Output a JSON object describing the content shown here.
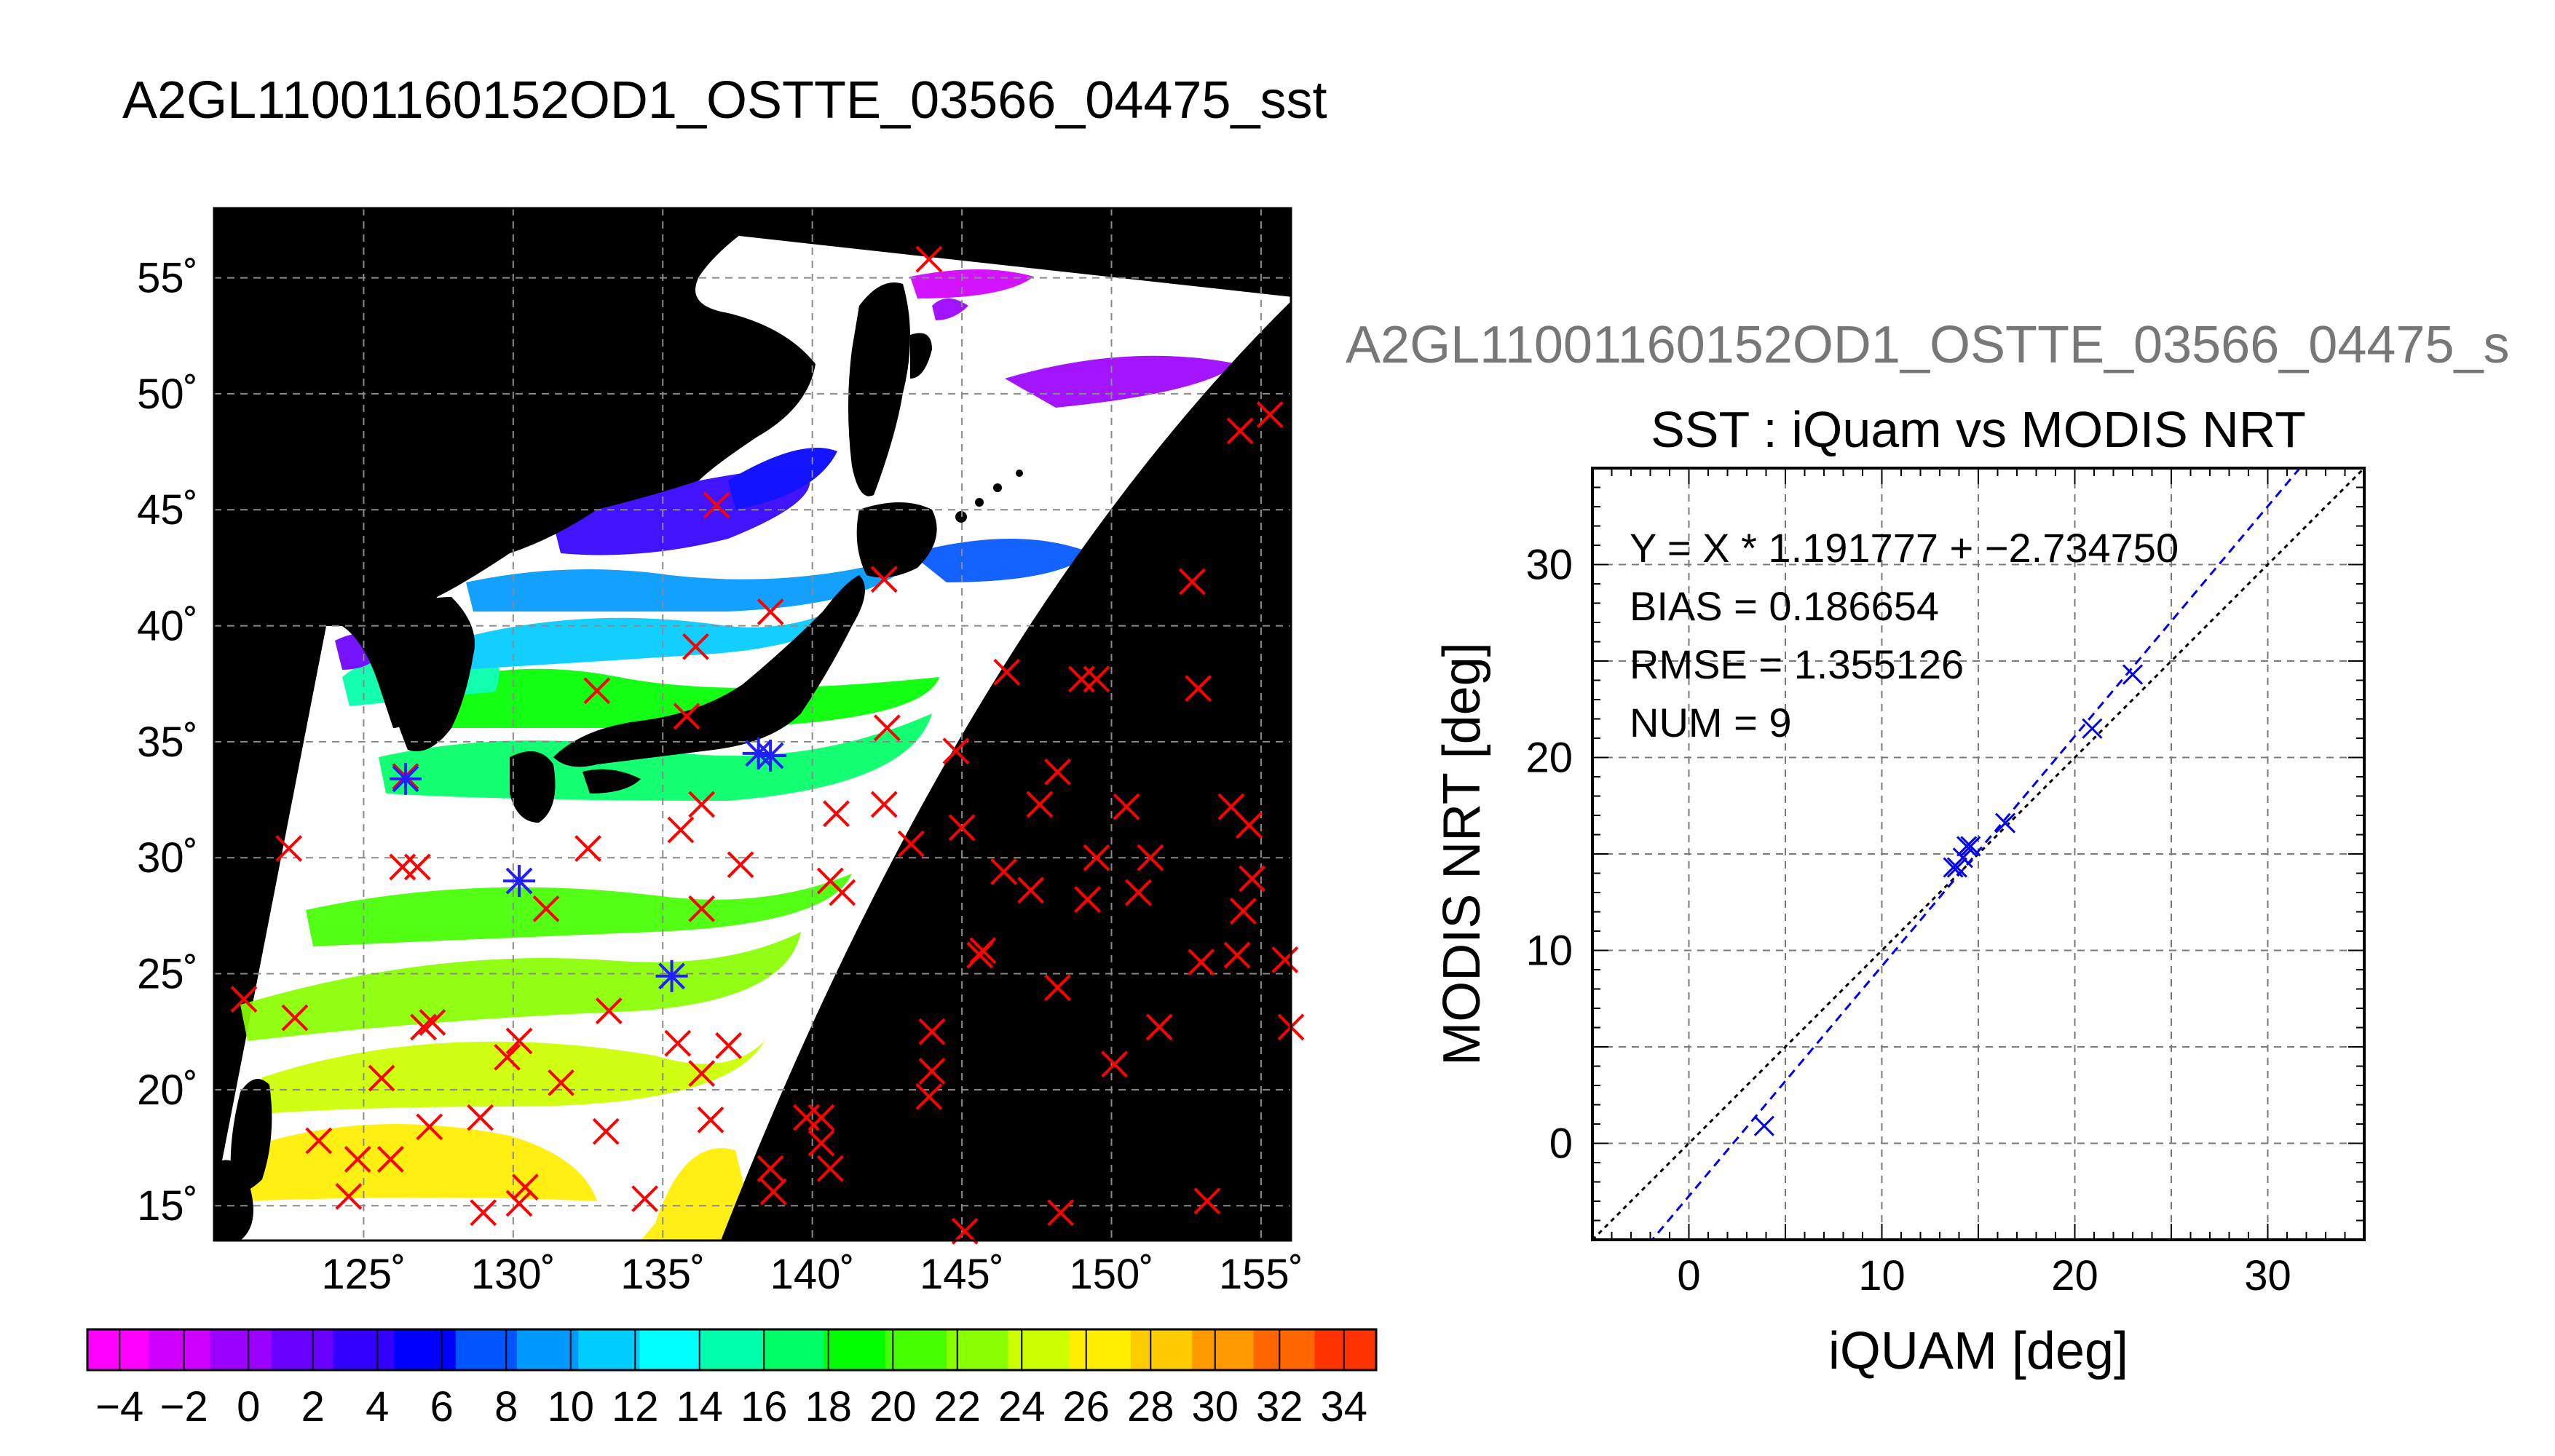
{
  "page_title": "A2GL11001160152OD1_OSTTE_03566_04475_sst",
  "chart_data": [
    {
      "type": "map",
      "title": "A2GL11001160152OD1_OSTTE_03566_04475_sst",
      "lon_ticks": [
        "125˚",
        "130˚",
        "135˚",
        "140˚",
        "145˚",
        "150˚",
        "155˚"
      ],
      "lat_ticks": [
        "55˚",
        "50˚",
        "45˚",
        "40˚",
        "35˚",
        "30˚",
        "25˚",
        "20˚",
        "15˚"
      ],
      "lon_values": [
        125,
        130,
        135,
        140,
        145,
        150,
        155
      ],
      "lat_values": [
        55,
        50,
        45,
        40,
        35,
        30,
        25,
        20,
        15
      ],
      "xlim": [
        120,
        156
      ],
      "ylim": [
        13.5,
        58
      ],
      "grid": true,
      "colorbar": {
        "range": [
          -5,
          35
        ],
        "tick_labels": [
          "−4",
          "−2",
          "0",
          "2",
          "4",
          "6",
          "8",
          "10",
          "12",
          "14",
          "16",
          "18",
          "20",
          "22",
          "24",
          "26",
          "28",
          "30",
          "32",
          "34"
        ],
        "tick_values": [
          -4,
          -2,
          0,
          2,
          4,
          6,
          8,
          10,
          12,
          14,
          16,
          18,
          20,
          22,
          24,
          26,
          28,
          30,
          32,
          34
        ],
        "colors": [
          "#ff00ff",
          "#d000ff",
          "#9b00ff",
          "#6a00ff",
          "#3300ff",
          "#0000ff",
          "#0055ff",
          "#0099ff",
          "#00ccff",
          "#00ffff",
          "#00ffaa",
          "#00ff66",
          "#00ff00",
          "#44ff00",
          "#88ff00",
          "#ccff00",
          "#ffee00",
          "#ffcc00",
          "#ff9900",
          "#ff6600",
          "#ff3300"
        ]
      },
      "iquam_points_red": [
        [
          143.9,
          55.8
        ],
        [
          154.3,
          48.4
        ],
        [
          155.3,
          49.1
        ],
        [
          136.8,
          45.2
        ],
        [
          152.7,
          41.9
        ],
        [
          142.4,
          42.0
        ],
        [
          138.6,
          40.6
        ],
        [
          136.1,
          39.1
        ],
        [
          132.8,
          37.2
        ],
        [
          146.5,
          38.0
        ],
        [
          149.0,
          37.7
        ],
        [
          149.5,
          37.7
        ],
        [
          152.9,
          37.3
        ],
        [
          135.8,
          36.1
        ],
        [
          142.5,
          35.6
        ],
        [
          144.8,
          34.6
        ],
        [
          148.2,
          33.7
        ],
        [
          126.4,
          33.5
        ],
        [
          136.3,
          32.3
        ],
        [
          140.8,
          31.9
        ],
        [
          142.4,
          32.3
        ],
        [
          147.6,
          32.3
        ],
        [
          150.5,
          32.2
        ],
        [
          154.0,
          32.2
        ],
        [
          154.6,
          31.4
        ],
        [
          145.0,
          31.3
        ],
        [
          135.6,
          31.2
        ],
        [
          143.3,
          30.6
        ],
        [
          122.5,
          30.4
        ],
        [
          132.5,
          30.4
        ],
        [
          149.5,
          30.0
        ],
        [
          151.3,
          30.0
        ],
        [
          126.3,
          29.6
        ],
        [
          126.8,
          29.6
        ],
        [
          137.6,
          29.7
        ],
        [
          140.6,
          29.0
        ],
        [
          141.0,
          28.5
        ],
        [
          146.4,
          29.4
        ],
        [
          147.3,
          28.6
        ],
        [
          149.2,
          28.2
        ],
        [
          150.9,
          28.5
        ],
        [
          154.7,
          29.1
        ],
        [
          154.4,
          27.7
        ],
        [
          131.1,
          27.8
        ],
        [
          136.3,
          27.8
        ],
        [
          145.6,
          25.8
        ],
        [
          145.7,
          26.0
        ],
        [
          153.0,
          25.5
        ],
        [
          154.2,
          25.8
        ],
        [
          155.8,
          25.6
        ],
        [
          121.0,
          23.9
        ],
        [
          122.7,
          23.1
        ],
        [
          127.0,
          22.7
        ],
        [
          127.3,
          22.9
        ],
        [
          130.2,
          22.1
        ],
        [
          133.2,
          23.4
        ],
        [
          135.5,
          22.0
        ],
        [
          137.2,
          21.9
        ],
        [
          144.0,
          22.5
        ],
        [
          148.2,
          24.4
        ],
        [
          151.6,
          22.7
        ],
        [
          156.0,
          22.7
        ],
        [
          125.6,
          20.5
        ],
        [
          129.8,
          21.4
        ],
        [
          131.6,
          20.3
        ],
        [
          136.3,
          20.7
        ],
        [
          144.0,
          20.8
        ],
        [
          143.9,
          19.7
        ],
        [
          150.1,
          21.1
        ],
        [
          127.2,
          18.4
        ],
        [
          128.9,
          18.8
        ],
        [
          133.1,
          18.2
        ],
        [
          136.6,
          18.7
        ],
        [
          139.8,
          18.8
        ],
        [
          140.3,
          18.8
        ],
        [
          140.3,
          17.7
        ],
        [
          123.5,
          17.8
        ],
        [
          124.8,
          17.0
        ],
        [
          125.9,
          17.0
        ],
        [
          130.4,
          15.8
        ],
        [
          130.2,
          15.1
        ],
        [
          138.6,
          16.6
        ],
        [
          140.6,
          16.6
        ],
        [
          124.5,
          15.4
        ],
        [
          129.0,
          14.7
        ],
        [
          134.4,
          15.3
        ],
        [
          138.7,
          15.6
        ],
        [
          148.3,
          14.7
        ],
        [
          153.2,
          15.2
        ],
        [
          145.1,
          13.9
        ]
      ],
      "matchup_points_blue": [
        [
          126.4,
          33.4
        ],
        [
          130.2,
          29.0
        ],
        [
          135.3,
          24.9
        ],
        [
          138.2,
          34.5
        ],
        [
          138.6,
          34.4
        ]
      ]
    },
    {
      "type": "scatter",
      "title": "SST : iQuam vs MODIS NRT",
      "subtitle": "A2GL11001160152OD1_OSTTE_03566_04475_s",
      "xlabel": "iQUAM [deg]",
      "ylabel": "MODIS NRT [deg]",
      "xlim": [
        -5,
        35
      ],
      "ylim": [
        -5,
        35
      ],
      "x_ticks": [
        0,
        10,
        20,
        30
      ],
      "y_ticks": [
        0,
        10,
        20,
        30
      ],
      "x_tick_labels": [
        "0",
        "10",
        "20",
        "30"
      ],
      "y_tick_labels": [
        "0",
        "10",
        "20",
        "30"
      ],
      "grid": true,
      "annotations": [
        "Y = X * 1.191777 + −2.734750",
        "BIAS = 0.186654",
        "RMSE = 1.355126",
        "NUM = 9"
      ],
      "regression": {
        "slope": 1.191777,
        "intercept": -2.73475
      },
      "x": [
        3.9,
        13.7,
        13.9,
        14.2,
        14.4,
        14.6,
        16.4,
        20.9,
        23.0
      ],
      "y": [
        0.9,
        14.3,
        14.3,
        14.8,
        15.4,
        15.4,
        16.6,
        21.5,
        24.3
      ]
    }
  ]
}
